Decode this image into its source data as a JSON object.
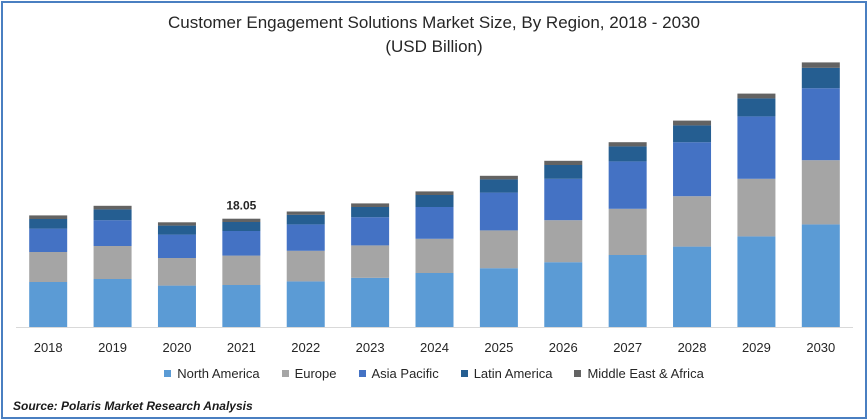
{
  "title": "Customer Engagement Solutions Market Size, By Region, 2018 - 2030",
  "subtitle": "(USD Billion)",
  "source": "Source: Polaris  Market Research Analysis",
  "chart_data": {
    "type": "bar",
    "stacked": true,
    "categories": [
      "2018",
      "2019",
      "2020",
      "2021",
      "2022",
      "2023",
      "2024",
      "2025",
      "2026",
      "2027",
      "2028",
      "2029",
      "2030"
    ],
    "series": [
      {
        "name": "North America",
        "color": "#5b9bd5",
        "values": [
          7.5,
          8.0,
          6.9,
          7.0,
          7.6,
          8.2,
          9.0,
          9.8,
          10.8,
          12.0,
          13.4,
          15.1,
          17.1
        ]
      },
      {
        "name": "Europe",
        "color": "#a5a5a5",
        "values": [
          5.0,
          5.5,
          4.6,
          4.9,
          5.1,
          5.4,
          5.7,
          6.3,
          7.0,
          7.7,
          8.4,
          9.6,
          10.7
        ]
      },
      {
        "name": "Asia Pacific",
        "color": "#4472c4",
        "values": [
          3.9,
          4.3,
          3.9,
          4.1,
          4.4,
          4.7,
          5.3,
          6.3,
          6.9,
          7.9,
          9.0,
          10.4,
          12.0
        ]
      },
      {
        "name": "Latin America",
        "color": "#255e91",
        "values": [
          1.6,
          1.8,
          1.5,
          1.5,
          1.6,
          1.7,
          2.0,
          2.2,
          2.3,
          2.5,
          2.8,
          3.0,
          3.4
        ]
      },
      {
        "name": "Middle East & Africa",
        "color": "#636363",
        "values": [
          0.6,
          0.6,
          0.55,
          0.55,
          0.55,
          0.6,
          0.6,
          0.6,
          0.7,
          0.7,
          0.8,
          0.8,
          0.9
        ]
      }
    ],
    "data_labels": [
      {
        "category": "2021",
        "text": "18.05"
      }
    ],
    "ylim": [
      0,
      45
    ],
    "xlabel": "",
    "ylabel": "",
    "grid": false,
    "legend": "bottom"
  }
}
